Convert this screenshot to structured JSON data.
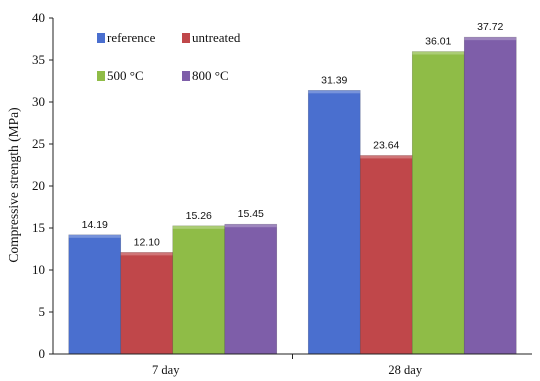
{
  "chart_data": {
    "type": "bar",
    "categories": [
      "7 day",
      "28 day"
    ],
    "series": [
      {
        "name": "reference",
        "color": "#4a6fcf",
        "values": [
          14.19,
          31.39
        ]
      },
      {
        "name": "untreated",
        "color": "#c0474a",
        "values": [
          12.1,
          23.64
        ]
      },
      {
        "name": "500 °C",
        "color": "#8fbc47",
        "values": [
          15.26,
          36.01
        ]
      },
      {
        "name": "800 °C",
        "color": "#7e5ea9",
        "values": [
          15.45,
          37.72
        ]
      }
    ],
    "value_labels": [
      [
        "14.19",
        "31.39"
      ],
      [
        "12.10",
        "23.64"
      ],
      [
        "15.26",
        "36.01"
      ],
      [
        "15.45",
        "37.72"
      ]
    ],
    "ylabel": "Compressive strength (MPa)",
    "xlabel": "",
    "ylim": [
      0,
      40
    ],
    "yticks": [
      "0",
      "5",
      "10",
      "15",
      "20",
      "25",
      "30",
      "35",
      "40"
    ],
    "grid": false,
    "legend_position": "top-left"
  }
}
